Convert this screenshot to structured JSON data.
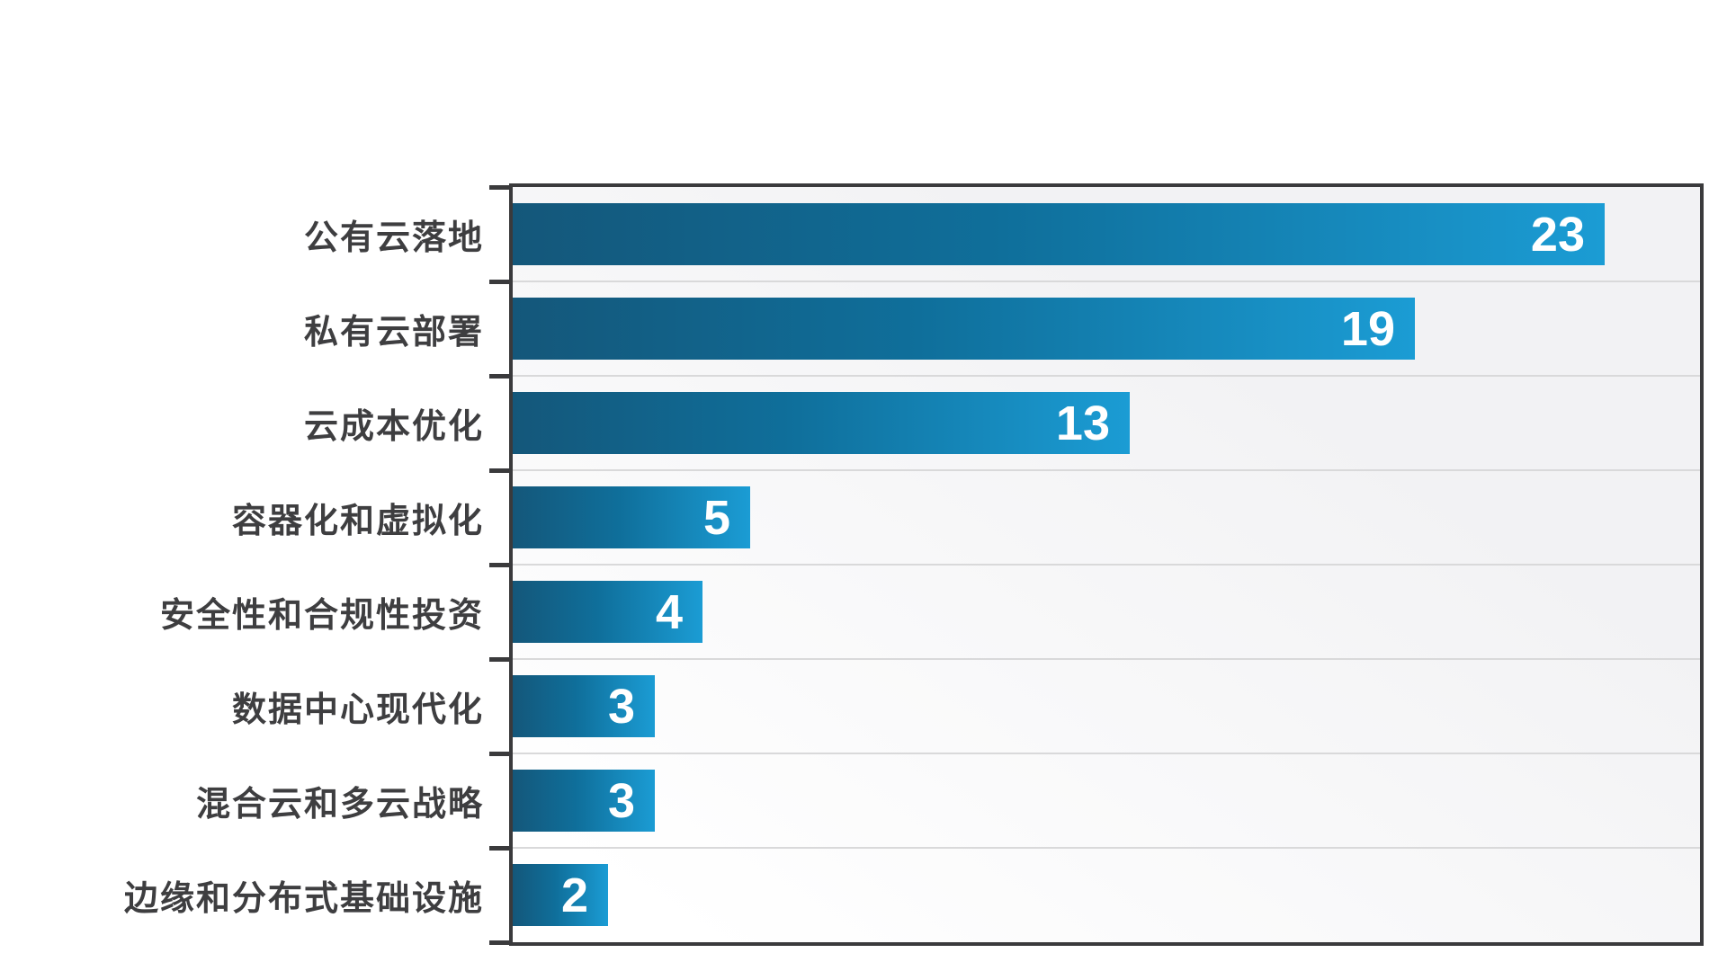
{
  "chart_data": {
    "type": "bar",
    "orientation": "horizontal",
    "title": "",
    "xlabel": "",
    "ylabel": "",
    "categories": [
      "公有云落地",
      "私有云部署",
      "云成本优化",
      "容器化和虚拟化",
      "安全性和合规性投资",
      "数据中心现代化",
      "混合云和多云战略",
      "边缘和分布式基础设施"
    ],
    "values": [
      23,
      19,
      13,
      5,
      4,
      3,
      3,
      2
    ],
    "xlim": [
      0,
      25
    ],
    "grid": "row-separators-only",
    "legend": "none",
    "value_labels": [
      "23",
      "19",
      "13",
      "5",
      "4",
      "3",
      "3",
      "2"
    ],
    "colors": {
      "bar_gradient_dark": "#14577a",
      "bar_gradient_mid": "#0f6f9b",
      "bar_gradient_light": "#1b9cd4",
      "value_label": "#ffffff",
      "category_label": "#3e3e40",
      "axis_border": "#3a3a3c",
      "gridline": "#d9d9da",
      "plot_bg_from": "#ffffff",
      "plot_bg_to": "#f2f2f4",
      "page_bg": "#ffffff"
    }
  }
}
